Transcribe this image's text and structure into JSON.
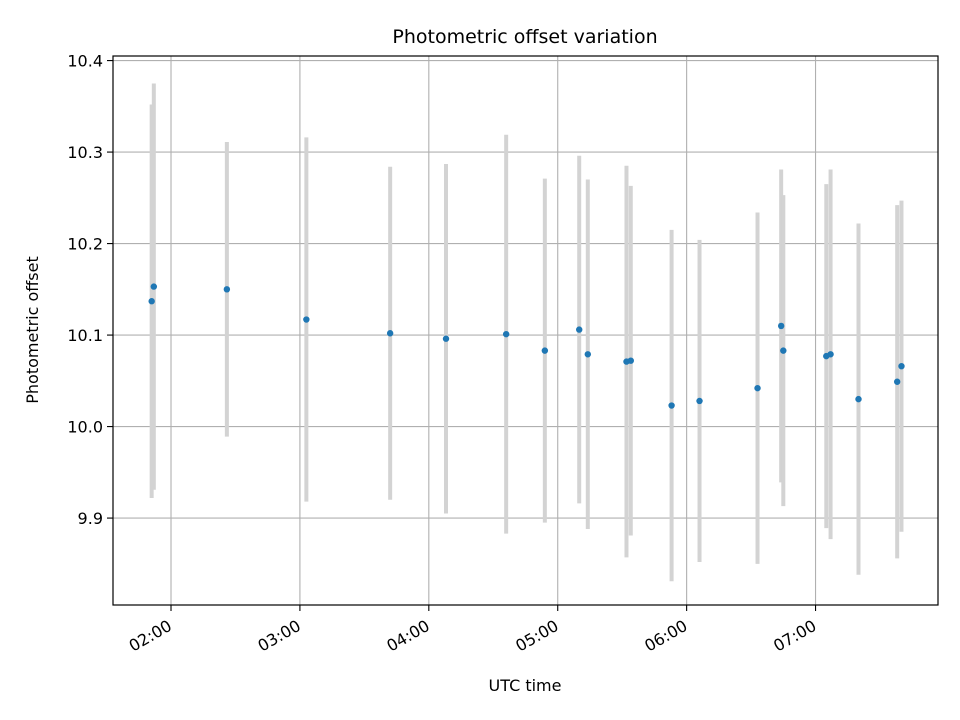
{
  "chart_data": {
    "type": "scatter",
    "title": "Photometric offset variation",
    "xlabel": "UTC time",
    "ylabel": "Photometric offset",
    "xlim": [
      "01:33",
      "07:57"
    ],
    "ylim": [
      9.805,
      10.405
    ],
    "x_ticks": [
      "02:00",
      "03:00",
      "04:00",
      "05:00",
      "06:00",
      "07:00"
    ],
    "y_ticks": [
      "9.9",
      "10.0",
      "10.1",
      "10.2",
      "10.3",
      "10.4"
    ],
    "grid": true,
    "colors": {
      "point": "#1f77b4",
      "errorbar": "#d3d3d3",
      "grid": "#b0b0b0"
    },
    "points": [
      {
        "x": "01:51",
        "y": 10.137,
        "err": 0.215
      },
      {
        "x": "01:52",
        "y": 10.153,
        "err": 0.222
      },
      {
        "x": "02:26",
        "y": 10.15,
        "err": 0.161
      },
      {
        "x": "03:03",
        "y": 10.117,
        "err": 0.199
      },
      {
        "x": "03:42",
        "y": 10.102,
        "err": 0.182
      },
      {
        "x": "04:08",
        "y": 10.096,
        "err": 0.191
      },
      {
        "x": "04:36",
        "y": 10.101,
        "err": 0.218
      },
      {
        "x": "04:54",
        "y": 10.083,
        "err": 0.188
      },
      {
        "x": "05:10",
        "y": 10.106,
        "err": 0.19
      },
      {
        "x": "05:14",
        "y": 10.079,
        "err": 0.191
      },
      {
        "x": "05:32",
        "y": 10.071,
        "err": 0.214
      },
      {
        "x": "05:34",
        "y": 10.072,
        "err": 0.191
      },
      {
        "x": "05:53",
        "y": 10.023,
        "err": 0.192
      },
      {
        "x": "06:06",
        "y": 10.028,
        "err": 0.176
      },
      {
        "x": "06:33",
        "y": 10.042,
        "err": 0.192
      },
      {
        "x": "06:44",
        "y": 10.11,
        "err": 0.171
      },
      {
        "x": "06:45",
        "y": 10.083,
        "err": 0.17
      },
      {
        "x": "07:05",
        "y": 10.077,
        "err": 0.188
      },
      {
        "x": "07:07",
        "y": 10.079,
        "err": 0.202
      },
      {
        "x": "07:20",
        "y": 10.03,
        "err": 0.192
      },
      {
        "x": "07:38",
        "y": 10.049,
        "err": 0.193
      },
      {
        "x": "07:40",
        "y": 10.066,
        "err": 0.181
      }
    ]
  }
}
